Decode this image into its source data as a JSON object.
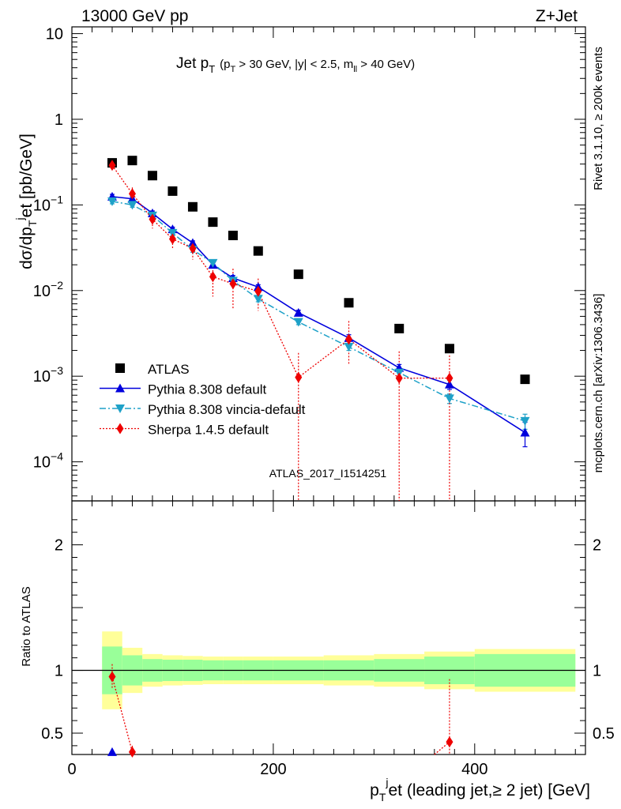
{
  "header": {
    "left": "13000 GeV pp",
    "right": "Z+Jet"
  },
  "side_labels": {
    "rivet": "Rivet 3.1.10, ≥ 200k events",
    "mcplots": "mcplots.cern.ch [arXiv:1306.3436]"
  },
  "analysis_id": "ATLAS_2017_I1514251",
  "colors": {
    "atlas": "#000000",
    "pythia_default": "#0000dd",
    "pythia_vincia": "#1ea1c8",
    "sherpa": "#ee0000",
    "band_inner": "#99ff99",
    "band_outer": "#ffff99"
  },
  "chart_data": [
    {
      "type": "scatter",
      "panel": "main",
      "title": "Jet p_T (p_T > 30 GeV, |y| < 2.5, m_ll > 40 GeV)",
      "title_parts": {
        "main": "Jet p",
        "main_sub": "T",
        "cut_open": "(p",
        "cut_sub": "T",
        "cut_mid": " > 30 GeV, |y| < 2.5, m",
        "cut_sub2": "ll",
        "cut_close": " > 40 GeV)"
      },
      "ylabel": "dσ/dp_T^jet [pb/GeV]",
      "ylabel_parts": {
        "a": "dσ/dp",
        "sub": "T",
        "sup": "j",
        "b": "et [pb/GeV]"
      },
      "xlabel": "p_T^jet (leading jet,≥ 2 jet) [GeV]",
      "xlim": [
        0,
        510
      ],
      "ylim": [
        3.5e-05,
        12
      ],
      "yscale": "log",
      "y_ticks": [
        {
          "value": 10,
          "label": "10"
        },
        {
          "value": 1,
          "label": "1"
        },
        {
          "value": 0.1,
          "label": "10",
          "exp": "−1"
        },
        {
          "value": 0.01,
          "label": "10",
          "exp": "−2"
        },
        {
          "value": 0.001,
          "label": "10",
          "exp": "−3"
        },
        {
          "value": 0.0001,
          "label": "10",
          "exp": "−4"
        }
      ],
      "legend_position": "lower-left",
      "series": [
        {
          "name": "ATLAS",
          "style": "data",
          "x": [
            40,
            60,
            80,
            100,
            120,
            140,
            160,
            185,
            225,
            275,
            325,
            375,
            450
          ],
          "y": [
            0.31,
            0.33,
            0.22,
            0.145,
            0.095,
            0.063,
            0.044,
            0.029,
            0.0155,
            0.0072,
            0.0036,
            0.0021,
            0.00092
          ]
        },
        {
          "name": "Pythia 8.308 default",
          "style": "pythia_default",
          "x": [
            40,
            60,
            80,
            100,
            120,
            140,
            160,
            185,
            225,
            275,
            325,
            375,
            450
          ],
          "y": [
            0.125,
            0.118,
            0.08,
            0.052,
            0.036,
            0.02,
            0.014,
            0.011,
            0.0055,
            0.0028,
            0.00125,
            0.0008,
            0.00022
          ],
          "err": [
            0.008,
            0.007,
            0.005,
            0.003,
            0.002,
            0.0013,
            0.001,
            0.0007,
            0.0004,
            0.00025,
            0.00012,
            0.0001,
            7e-05
          ]
        },
        {
          "name": "Pythia 8.308 vincia-default",
          "style": "pythia_vincia",
          "x": [
            40,
            60,
            80,
            100,
            120,
            140,
            160,
            185,
            225,
            275,
            325,
            375,
            450
          ],
          "y": [
            0.11,
            0.1,
            0.075,
            0.047,
            0.03,
            0.021,
            0.013,
            0.008,
            0.0043,
            0.0022,
            0.0011,
            0.00055,
            0.0003
          ],
          "err": [
            0.007,
            0.006,
            0.004,
            0.003,
            0.002,
            0.0013,
            0.0009,
            0.0006,
            0.0003,
            0.0002,
            0.0001,
            7e-05,
            6e-05
          ]
        },
        {
          "name": "Sherpa 1.4.5 default",
          "style": "sherpa",
          "x": [
            40,
            60,
            80,
            100,
            120,
            140,
            160,
            185,
            225,
            275,
            325,
            375
          ],
          "y": [
            0.29,
            0.135,
            0.068,
            0.04,
            0.031,
            0.0145,
            0.012,
            0.0098,
            0.00097,
            0.0027,
            0.00095,
            0.00095
          ],
          "err_lo": [
            0.03,
            0.025,
            0.015,
            0.01,
            0.008,
            0.006,
            0.006,
            0.004,
            0.00096,
            0.0013,
            0.00094,
            0.00094
          ],
          "err_hi": [
            0.03,
            0.025,
            0.015,
            0.01,
            0.008,
            0.006,
            0.006,
            0.004,
            0.0009,
            0.0017,
            0.001,
            0.0008
          ]
        }
      ]
    },
    {
      "type": "scatter",
      "panel": "ratio",
      "ylabel": "Ratio to ATLAS",
      "xlim": [
        0,
        510
      ],
      "ylim": [
        0.33,
        2.35
      ],
      "x_ticks": [
        {
          "value": 0,
          "label": "0"
        },
        {
          "value": 200,
          "label": "200"
        },
        {
          "value": 400,
          "label": "400"
        }
      ],
      "y_ticks": [
        {
          "value": 2,
          "label": "2"
        },
        {
          "value": 1,
          "label": "1"
        },
        {
          "value": 0.5,
          "label": "0.5"
        }
      ],
      "bands": {
        "edges": [
          30,
          50,
          70,
          90,
          110,
          130,
          150,
          170,
          200,
          250,
          300,
          350,
          400,
          500
        ],
        "inner": [
          0.19,
          0.12,
          0.09,
          0.085,
          0.085,
          0.08,
          0.08,
          0.08,
          0.08,
          0.08,
          0.09,
          0.11,
          0.13
        ],
        "outer": [
          0.31,
          0.18,
          0.13,
          0.12,
          0.115,
          0.11,
          0.11,
          0.11,
          0.11,
          0.12,
          0.13,
          0.15,
          0.17
        ]
      },
      "series": [
        {
          "name": "Pythia 8.308 default",
          "style": "pythia_default",
          "x": [
            40
          ],
          "y": [
            0.35
          ],
          "err": [
            0.02
          ]
        },
        {
          "name": "Sherpa 1.4.5 default",
          "style": "sherpa",
          "x": [
            40,
            60,
            375
          ],
          "y": [
            0.95,
            0.35,
            0.43
          ],
          "err_lo": [
            0.1,
            0.05,
            0.43
          ],
          "err_hi": [
            0.1,
            0.05,
            0.5
          ]
        }
      ]
    }
  ]
}
